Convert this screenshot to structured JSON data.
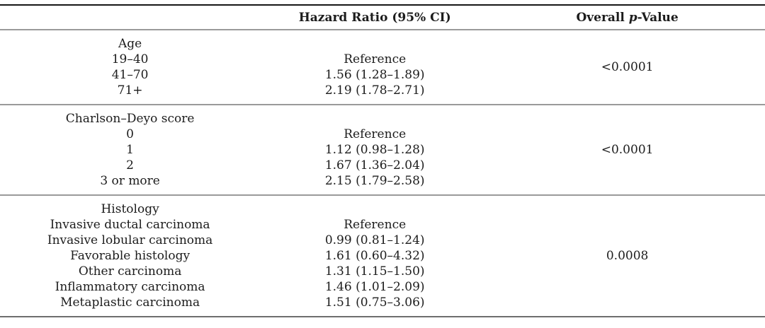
{
  "table": {
    "headers": {
      "variable": "",
      "hazard_ratio": "Hazard Ratio (95% CI)",
      "p_value": {
        "pre": "Overall ",
        "italic": "p",
        "post": "-Value"
      }
    },
    "sections": [
      {
        "id": "age",
        "p_value": "<0.0001",
        "rows": [
          {
            "label": "Age",
            "hr": ""
          },
          {
            "label": "19–40",
            "hr": "Reference"
          },
          {
            "label": "41–70",
            "hr": "1.56 (1.28–1.89)"
          },
          {
            "label": "71+",
            "hr": "2.19 (1.78–2.71)"
          }
        ]
      },
      {
        "id": "charlson-deyo-score",
        "p_value": "<0.0001",
        "rows": [
          {
            "label": "Charlson–Deyo score",
            "hr": ""
          },
          {
            "label": "0",
            "hr": "Reference"
          },
          {
            "label": "1",
            "hr": "1.12 (0.98–1.28)"
          },
          {
            "label": "2",
            "hr": "1.67 (1.36–2.04)"
          },
          {
            "label": "3 or more",
            "hr": "2.15 (1.79–2.58)"
          }
        ]
      },
      {
        "id": "histology",
        "p_value": "0.0008",
        "rows": [
          {
            "label": "Histology",
            "hr": ""
          },
          {
            "label": "Invasive ductal carcinoma",
            "hr": "Reference"
          },
          {
            "label": "Invasive lobular carcinoma",
            "hr": "0.99 (0.81–1.24)"
          },
          {
            "label": "Favorable histology",
            "hr": "1.61 (0.60–4.32)"
          },
          {
            "label": "Other carcinoma",
            "hr": "1.31 (1.15–1.50)"
          },
          {
            "label": "Inflammatory carcinoma",
            "hr": "1.46 (1.01–2.09)"
          },
          {
            "label": "Metaplastic carcinoma",
            "hr": "1.51 (0.75–3.06)"
          }
        ]
      }
    ],
    "colors": {
      "rule_dark": "#161616",
      "rule_mid": "#6e6e6e",
      "rule_light": "#9a9a9a",
      "text": "#1c1c1c"
    }
  }
}
